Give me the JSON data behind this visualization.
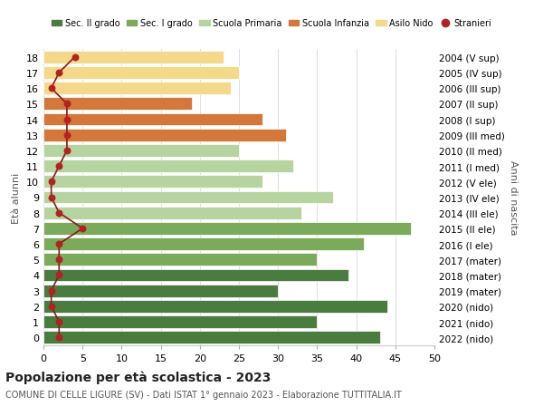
{
  "ages": [
    18,
    17,
    16,
    15,
    14,
    13,
    12,
    11,
    10,
    9,
    8,
    7,
    6,
    5,
    4,
    3,
    2,
    1,
    0
  ],
  "years": [
    "2004 (V sup)",
    "2005 (IV sup)",
    "2006 (III sup)",
    "2007 (II sup)",
    "2008 (I sup)",
    "2009 (III med)",
    "2010 (II med)",
    "2011 (I med)",
    "2012 (V ele)",
    "2013 (IV ele)",
    "2014 (III ele)",
    "2015 (II ele)",
    "2016 (I ele)",
    "2017 (mater)",
    "2018 (mater)",
    "2019 (mater)",
    "2020 (nido)",
    "2021 (nido)",
    "2022 (nido)"
  ],
  "bar_values": [
    43,
    35,
    44,
    30,
    39,
    35,
    41,
    47,
    33,
    37,
    28,
    32,
    25,
    31,
    28,
    19,
    24,
    25,
    23
  ],
  "stranieri_values": [
    2,
    2,
    1,
    1,
    2,
    2,
    2,
    5,
    2,
    1,
    1,
    2,
    3,
    3,
    3,
    3,
    1,
    2,
    4
  ],
  "bar_colors": [
    "#4a7c40",
    "#4a7c40",
    "#4a7c40",
    "#4a7c40",
    "#4a7c40",
    "#7aaa5a",
    "#7aaa5a",
    "#7aaa5a",
    "#b5d4a0",
    "#b5d4a0",
    "#b5d4a0",
    "#b5d4a0",
    "#b5d4a0",
    "#d4773a",
    "#d4773a",
    "#d4773a",
    "#f5d98a",
    "#f5d98a",
    "#f5d98a"
  ],
  "legend_labels": [
    "Sec. II grado",
    "Sec. I grado",
    "Scuola Primaria",
    "Scuola Infanzia",
    "Asilo Nido",
    "Stranieri"
  ],
  "legend_colors": [
    "#4a7c40",
    "#7aaa5a",
    "#b5d4a0",
    "#d4773a",
    "#f5d98a",
    "#b22222"
  ],
  "title": "Popolazione per età scolastica - 2023",
  "subtitle": "COMUNE DI CELLE LIGURE (SV) - Dati ISTAT 1° gennaio 2023 - Elaborazione TUTTITALIA.IT",
  "ylabel_left": "Età alunni",
  "ylabel_right": "Anni di nascita",
  "xlim": [
    0,
    50
  ],
  "xticks": [
    0,
    5,
    10,
    15,
    20,
    25,
    30,
    35,
    40,
    45,
    50
  ],
  "stranieri_line_color": "#8b1a1a",
  "stranieri_dot_color": "#b22222",
  "grid_color": "#dddddd",
  "bg_color": "#ffffff"
}
